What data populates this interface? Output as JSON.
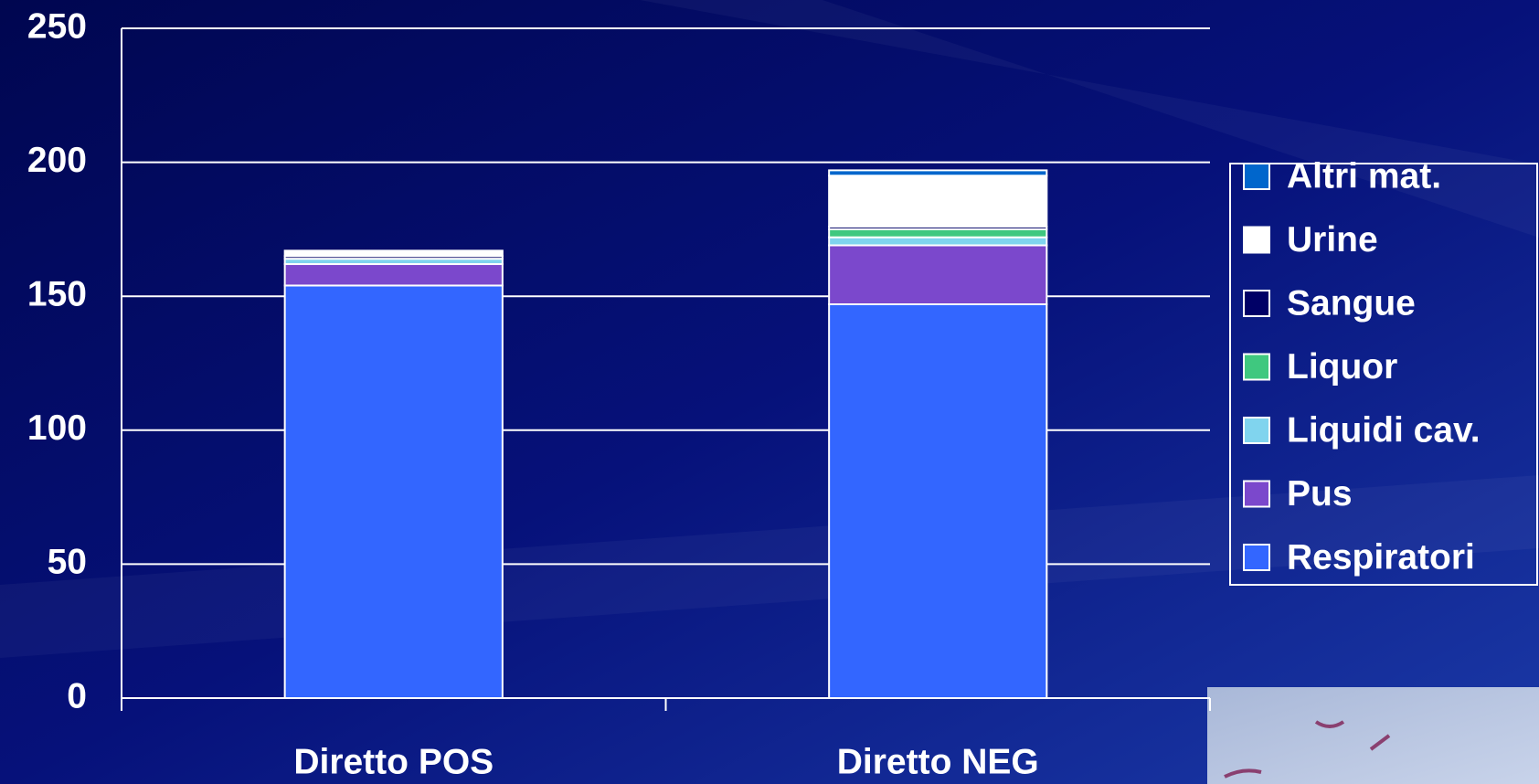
{
  "chart_data": {
    "type": "stacked_bar",
    "categories": [
      "Diretto POS",
      "Diretto NEG"
    ],
    "series": [
      {
        "name": "Respiratori",
        "color": "#3366ff",
        "values": [
          154,
          147
        ]
      },
      {
        "name": "Pus",
        "color": "#7b48cc",
        "values": [
          8,
          22
        ]
      },
      {
        "name": "Liquidi cav.",
        "color": "#80d4ee",
        "values": [
          2,
          3
        ]
      },
      {
        "name": "Liquor",
        "color": "#3fc87f",
        "values": [
          0,
          3
        ]
      },
      {
        "name": "Sangue",
        "color": "#000066",
        "values": [
          1,
          1
        ]
      },
      {
        "name": "Urine",
        "color": "#ffffff",
        "values": [
          2,
          19
        ]
      },
      {
        "name": "Altri mat.",
        "color": "#0066cc",
        "values": [
          0,
          2
        ]
      }
    ],
    "ylim": [
      0,
      250
    ],
    "yticks": [
      0,
      50,
      100,
      150,
      200,
      250
    ],
    "grid": true,
    "legend": "right"
  }
}
